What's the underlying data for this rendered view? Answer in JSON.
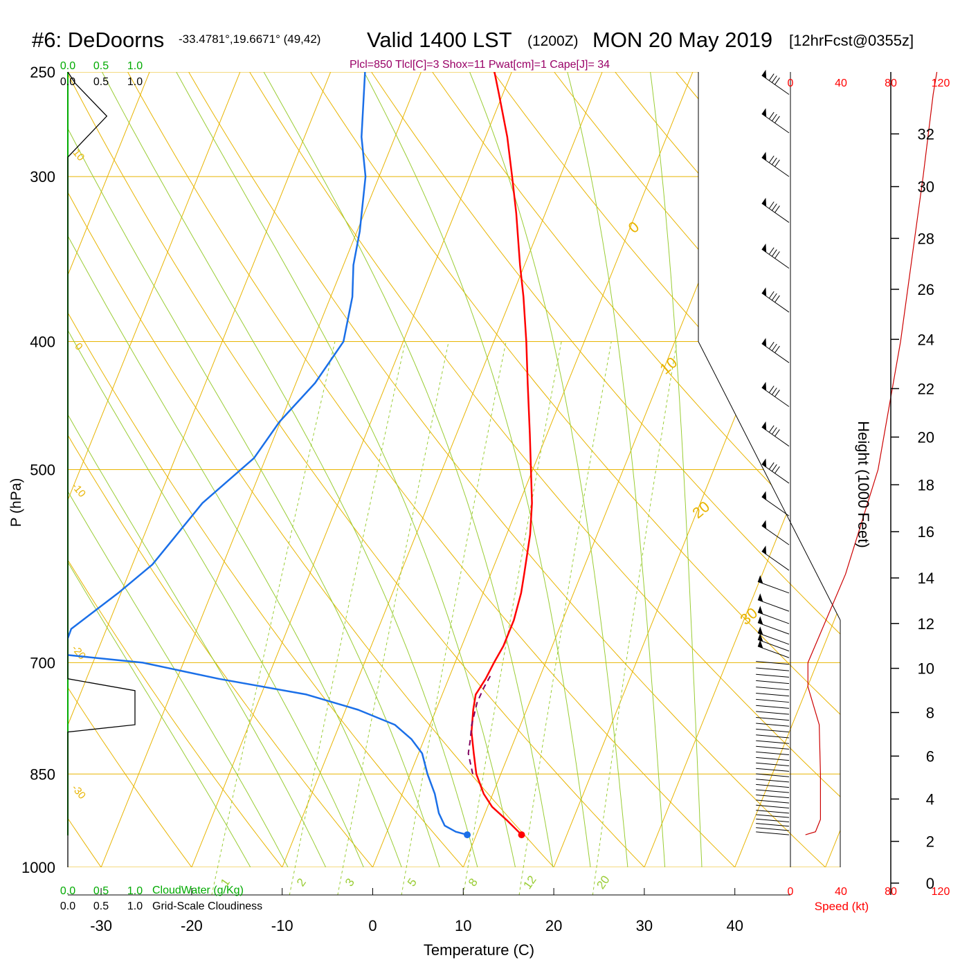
{
  "header": {
    "station": "#6: DeDoorns",
    "coords": "-33.4781°,19.6671° (49,42)",
    "valid": "Valid 1400 LST",
    "zulu": "(1200Z)",
    "date": "MON 20 May 2019",
    "forecast": "[12hrFcst@0355z]",
    "indices": "Plcl=850 Tlcl[C]=3 Shox=11 Pwat[cm]=1 Cape[J]= 34"
  },
  "cloud_scale": {
    "top_green": [
      "0.0",
      "0.5",
      "1.0"
    ],
    "top_black": [
      "0.0",
      "0.5",
      "1.0"
    ],
    "bottom_green": [
      "0.0",
      "0.5",
      "1.0"
    ],
    "bottom_black": [
      "0.0",
      "0.5",
      "1.0"
    ],
    "cloudwater_label": "CloudWater (g/Kg)",
    "cloudiness_label": "Grid-Scale Cloudiness"
  },
  "speed_axis": {
    "ticks": [
      "0",
      "40",
      "80",
      "120"
    ],
    "label": "Speed (kt)"
  },
  "colors": {
    "isotherm": "#e8b400",
    "dry_adiabat": "#e8b400",
    "moist_adiabat": "#99cc33",
    "mixing_ratio": "#99cc33",
    "temperature": "#ff0000",
    "dewpoint": "#1a6fe8",
    "parcel": "#800060",
    "cloudwater": "#00aa00",
    "speed": "#cc0000",
    "indices": "#990066"
  },
  "chart_data": {
    "type": "line",
    "xlabel": "Temperature (C)",
    "ylabel": "P (hPa)",
    "height_label": "Height (1000 Feet)",
    "x_ticks": [
      -30,
      -20,
      -10,
      0,
      10,
      20,
      30,
      40
    ],
    "y_ticks": [
      250,
      300,
      400,
      500,
      700,
      850,
      1000
    ],
    "height_ticks": [
      0,
      2,
      4,
      6,
      8,
      10,
      12,
      14,
      16,
      18,
      20,
      22,
      24,
      26,
      28,
      30,
      32
    ],
    "xlim": [
      -33,
      36
    ],
    "ylim": [
      1000,
      250
    ],
    "grid": true,
    "isotherm_labels": [
      "0",
      "10",
      "20",
      "30"
    ],
    "dry_adiabat_labels": [
      "10",
      "0",
      "-10",
      "-20",
      "-30"
    ],
    "mixing_ratio_labels": [
      "1",
      "2",
      "3",
      "5",
      "8",
      "12",
      "20"
    ],
    "series": [
      {
        "key": "temperature",
        "points": [
          [
            945,
            15.0
          ],
          [
            920,
            12.6
          ],
          [
            900,
            10.5
          ],
          [
            880,
            9.0
          ],
          [
            850,
            7.3
          ],
          [
            820,
            6.1
          ],
          [
            790,
            4.9
          ],
          [
            760,
            4.1
          ],
          [
            740,
            3.7
          ],
          [
            720,
            4.1
          ],
          [
            700,
            4.3
          ],
          [
            680,
            4.6
          ],
          [
            650,
            4.6
          ],
          [
            620,
            4.2
          ],
          [
            600,
            3.7
          ],
          [
            560,
            2.6
          ],
          [
            530,
            1.4
          ],
          [
            500,
            -0.2
          ],
          [
            470,
            -1.9
          ],
          [
            430,
            -4.4
          ],
          [
            400,
            -6.4
          ],
          [
            370,
            -8.7
          ],
          [
            350,
            -10.5
          ],
          [
            320,
            -13.2
          ],
          [
            300,
            -15.3
          ],
          [
            280,
            -17.6
          ],
          [
            260,
            -20.4
          ],
          [
            250,
            -21.9
          ]
        ]
      },
      {
        "key": "dewpoint",
        "points": [
          [
            945,
            9.0
          ],
          [
            940,
            7.6
          ],
          [
            930,
            6.1
          ],
          [
            910,
            4.9
          ],
          [
            880,
            3.6
          ],
          [
            850,
            1.9
          ],
          [
            820,
            0.4
          ],
          [
            800,
            -1.4
          ],
          [
            780,
            -3.9
          ],
          [
            760,
            -8.6
          ],
          [
            740,
            -15.0
          ],
          [
            720,
            -25.4
          ],
          [
            700,
            -34.5
          ],
          [
            690,
            -43.8
          ],
          [
            660,
            -43.9
          ],
          [
            620,
            -40.3
          ],
          [
            590,
            -37.8
          ],
          [
            530,
            -35.0
          ],
          [
            490,
            -31.3
          ],
          [
            460,
            -30.1
          ],
          [
            430,
            -27.9
          ],
          [
            400,
            -26.6
          ],
          [
            370,
            -27.6
          ],
          [
            350,
            -28.9
          ],
          [
            330,
            -29.7
          ],
          [
            300,
            -31.5
          ],
          [
            280,
            -33.7
          ],
          [
            250,
            -36.2
          ]
        ]
      },
      {
        "key": "parcel",
        "points": [
          [
            850,
            6.9
          ],
          [
            820,
            5.5
          ],
          [
            800,
            5.1
          ],
          [
            780,
            4.6
          ],
          [
            750,
            4.2
          ],
          [
            730,
            4.3
          ],
          [
            715,
            4.5
          ]
        ]
      }
    ],
    "points": [
      {
        "key": "surface_temperature",
        "p": 945,
        "t": 15.0
      },
      {
        "key": "surface_dewpoint",
        "p": 945,
        "t": 9.0
      }
    ],
    "cloud_profile": [
      [
        250,
        0.0
      ],
      [
        255,
        0.11
      ],
      [
        270,
        0.58
      ],
      [
        290,
        0.0
      ],
      [
        300,
        0.0
      ],
      [
        700,
        0.0
      ],
      [
        720,
        0.0
      ],
      [
        735,
        1.0
      ],
      [
        780,
        1.0
      ],
      [
        790,
        0.0
      ],
      [
        1000,
        0.0
      ]
    ],
    "speed_profile": [
      [
        945,
        12
      ],
      [
        940,
        20
      ],
      [
        920,
        24
      ],
      [
        850,
        24
      ],
      [
        780,
        23
      ],
      [
        730,
        14
      ],
      [
        700,
        14
      ],
      [
        600,
        44
      ],
      [
        500,
        70
      ],
      [
        400,
        88
      ],
      [
        300,
        106
      ],
      [
        260,
        114
      ],
      [
        250,
        117
      ]
    ],
    "wind_levels": [
      945,
      938,
      931,
      924,
      917,
      910,
      902,
      894,
      886,
      878,
      870,
      862,
      854,
      846,
      838,
      830,
      822,
      814,
      806,
      798,
      790,
      782,
      774,
      766,
      758,
      750,
      742,
      734,
      726,
      718,
      710,
      702,
      694,
      686,
      678,
      666,
      654,
      640,
      620,
      596,
      570,
      542,
      512,
      480,
      448,
      415,
      380,
      352,
      325,
      300,
      278,
      260
    ]
  }
}
